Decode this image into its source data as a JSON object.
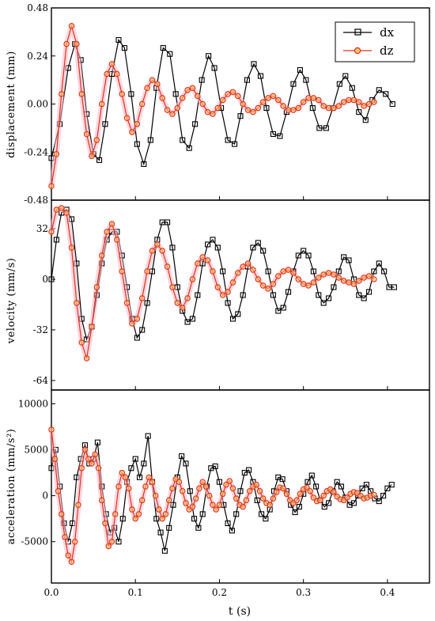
{
  "chart_data": [
    {
      "type": "line",
      "ylabel": "displacement (mm)",
      "ylim": [
        -0.48,
        0.48
      ],
      "yticks": [
        "0.48",
        "0.24",
        "0.00",
        "-0.24",
        "-0.48"
      ],
      "xlim": [
        0.0,
        0.45
      ],
      "legend_position": "top-right",
      "series": [
        {
          "name": "dx",
          "color": "#000000",
          "marker": "square",
          "x": [
            0.0,
            0.01,
            0.02,
            0.028,
            0.035,
            0.042,
            0.05,
            0.057,
            0.064,
            0.072,
            0.08,
            0.087,
            0.095,
            0.102,
            0.11,
            0.118,
            0.125,
            0.133,
            0.141,
            0.148,
            0.156,
            0.164,
            0.171,
            0.179,
            0.187,
            0.194,
            0.202,
            0.21,
            0.218,
            0.225,
            0.233,
            0.241,
            0.249,
            0.256,
            0.264,
            0.272,
            0.28,
            0.288,
            0.296,
            0.303,
            0.311,
            0.319,
            0.327,
            0.335,
            0.343,
            0.35,
            0.358,
            0.366,
            0.374,
            0.382,
            0.39,
            0.398,
            0.406
          ],
          "y": [
            -0.27,
            -0.1,
            0.18,
            0.3,
            0.22,
            -0.05,
            -0.25,
            -0.28,
            -0.1,
            0.15,
            0.32,
            0.28,
            0.05,
            -0.2,
            -0.3,
            -0.18,
            0.08,
            0.28,
            0.25,
            0.05,
            -0.18,
            -0.22,
            -0.1,
            0.12,
            0.24,
            0.18,
            -0.02,
            -0.18,
            -0.2,
            -0.06,
            0.12,
            0.2,
            0.14,
            -0.02,
            -0.15,
            -0.16,
            -0.04,
            0.1,
            0.17,
            0.12,
            -0.02,
            -0.12,
            -0.12,
            -0.02,
            0.1,
            0.14,
            0.08,
            -0.04,
            -0.08,
            0.02,
            0.07,
            0.05,
            0.0
          ]
        },
        {
          "name": "dz",
          "color": "#e0301e",
          "marker": "circle",
          "x": [
            0.0,
            0.006,
            0.012,
            0.018,
            0.024,
            0.03,
            0.036,
            0.042,
            0.048,
            0.054,
            0.06,
            0.066,
            0.072,
            0.078,
            0.084,
            0.09,
            0.096,
            0.102,
            0.108,
            0.114,
            0.12,
            0.126,
            0.132,
            0.138,
            0.144,
            0.15,
            0.156,
            0.162,
            0.168,
            0.174,
            0.18,
            0.186,
            0.192,
            0.198,
            0.204,
            0.21,
            0.216,
            0.222,
            0.228,
            0.234,
            0.24,
            0.246,
            0.252,
            0.258,
            0.264,
            0.27,
            0.276,
            0.282,
            0.288,
            0.294,
            0.3,
            0.306,
            0.312,
            0.318,
            0.324,
            0.33,
            0.336,
            0.342,
            0.348,
            0.354,
            0.36,
            0.366,
            0.372,
            0.378,
            0.384
          ],
          "y": [
            -0.41,
            -0.25,
            0.05,
            0.3,
            0.39,
            0.3,
            0.05,
            -0.15,
            -0.26,
            -0.18,
            0.0,
            0.15,
            0.2,
            0.15,
            0.05,
            -0.07,
            -0.14,
            -0.1,
            0.0,
            0.08,
            0.12,
            0.1,
            0.03,
            -0.03,
            -0.05,
            -0.02,
            0.03,
            0.07,
            0.08,
            0.04,
            0.0,
            -0.04,
            -0.05,
            -0.02,
            0.02,
            0.05,
            0.06,
            0.04,
            0.0,
            -0.03,
            -0.04,
            -0.02,
            0.01,
            0.03,
            0.04,
            0.02,
            -0.01,
            -0.03,
            -0.03,
            -0.02,
            0.01,
            0.03,
            0.03,
            0.02,
            -0.01,
            -0.02,
            -0.02,
            -0.01,
            0.01,
            0.02,
            0.02,
            0.01,
            -0.01,
            0.0,
            0.01
          ]
        }
      ]
    },
    {
      "type": "line",
      "ylabel": "velocity (mm/s)",
      "ylim": [
        -70,
        50
      ],
      "yticks": [
        "32",
        "0",
        "-32",
        "-64"
      ],
      "xlim": [
        0.0,
        0.45
      ],
      "series": [
        {
          "name": "dx",
          "color": "#000000",
          "marker": "square",
          "x": [
            0.0,
            0.006,
            0.012,
            0.018,
            0.024,
            0.03,
            0.036,
            0.042,
            0.048,
            0.054,
            0.06,
            0.066,
            0.072,
            0.078,
            0.084,
            0.09,
            0.096,
            0.102,
            0.108,
            0.114,
            0.12,
            0.126,
            0.132,
            0.138,
            0.144,
            0.15,
            0.156,
            0.162,
            0.168,
            0.174,
            0.18,
            0.186,
            0.192,
            0.198,
            0.204,
            0.21,
            0.216,
            0.222,
            0.228,
            0.234,
            0.24,
            0.246,
            0.252,
            0.258,
            0.264,
            0.27,
            0.276,
            0.282,
            0.288,
            0.294,
            0.3,
            0.306,
            0.312,
            0.318,
            0.324,
            0.33,
            0.336,
            0.342,
            0.348,
            0.354,
            0.36,
            0.366,
            0.372,
            0.378,
            0.384,
            0.39,
            0.396,
            0.402,
            0.408
          ],
          "y": [
            0,
            25,
            42,
            44,
            38,
            10,
            -25,
            -38,
            -30,
            -10,
            10,
            25,
            30,
            30,
            15,
            -5,
            -25,
            -37,
            -32,
            -15,
            5,
            25,
            36,
            36,
            20,
            -5,
            -20,
            -27,
            -25,
            -10,
            10,
            22,
            25,
            20,
            5,
            -15,
            -25,
            -22,
            -10,
            8,
            20,
            23,
            18,
            5,
            -10,
            -20,
            -18,
            -8,
            5,
            15,
            18,
            15,
            5,
            -10,
            -15,
            -12,
            -5,
            5,
            14,
            12,
            0,
            -10,
            -12,
            -8,
            5,
            10,
            5,
            -5,
            -5
          ]
        },
        {
          "name": "dz",
          "color": "#e0301e",
          "marker": "circle",
          "x": [
            0.0,
            0.006,
            0.012,
            0.018,
            0.024,
            0.03,
            0.036,
            0.042,
            0.048,
            0.054,
            0.06,
            0.066,
            0.072,
            0.078,
            0.084,
            0.09,
            0.096,
            0.102,
            0.108,
            0.114,
            0.12,
            0.126,
            0.132,
            0.138,
            0.144,
            0.15,
            0.156,
            0.162,
            0.168,
            0.174,
            0.18,
            0.186,
            0.192,
            0.198,
            0.204,
            0.21,
            0.216,
            0.222,
            0.228,
            0.234,
            0.24,
            0.246,
            0.252,
            0.258,
            0.264,
            0.27,
            0.276,
            0.282,
            0.288,
            0.294,
            0.3,
            0.306,
            0.312,
            0.318,
            0.324,
            0.33,
            0.336,
            0.342,
            0.348,
            0.354,
            0.36,
            0.366,
            0.372,
            0.378,
            0.384
          ],
          "y": [
            30,
            44,
            45,
            42,
            20,
            -15,
            -40,
            -50,
            -30,
            -5,
            15,
            30,
            35,
            25,
            5,
            -15,
            -28,
            -25,
            -12,
            5,
            18,
            22,
            18,
            8,
            -5,
            -15,
            -18,
            -12,
            0,
            10,
            14,
            12,
            5,
            -5,
            -10,
            -8,
            -2,
            4,
            8,
            10,
            6,
            0,
            -4,
            -6,
            -3,
            2,
            5,
            6,
            4,
            0,
            -3,
            -4,
            -2,
            1,
            3,
            4,
            3,
            1,
            -1,
            -2,
            -3,
            -1,
            1,
            2,
            0
          ]
        }
      ]
    },
    {
      "type": "line",
      "ylabel": "acceleration (mm/s²)",
      "ylim": [
        -9500,
        11500
      ],
      "yticks": [
        "10000",
        "5000",
        "0",
        "-5000"
      ],
      "xlim": [
        0.0,
        0.45
      ],
      "xticks": [
        "0.0",
        "0.1",
        "0.2",
        "0.3",
        "0.4"
      ],
      "xlabel": "t (s)",
      "series": [
        {
          "name": "dx",
          "color": "#000000",
          "marker": "square",
          "x": [
            0.0,
            0.005,
            0.01,
            0.015,
            0.02,
            0.025,
            0.03,
            0.035,
            0.04,
            0.045,
            0.05,
            0.055,
            0.06,
            0.065,
            0.07,
            0.075,
            0.08,
            0.085,
            0.09,
            0.095,
            0.1,
            0.105,
            0.11,
            0.115,
            0.12,
            0.125,
            0.13,
            0.135,
            0.14,
            0.145,
            0.15,
            0.155,
            0.16,
            0.165,
            0.17,
            0.175,
            0.18,
            0.185,
            0.19,
            0.195,
            0.2,
            0.205,
            0.21,
            0.215,
            0.22,
            0.225,
            0.23,
            0.235,
            0.24,
            0.245,
            0.25,
            0.255,
            0.26,
            0.265,
            0.27,
            0.275,
            0.28,
            0.285,
            0.29,
            0.295,
            0.3,
            0.305,
            0.31,
            0.315,
            0.32,
            0.325,
            0.33,
            0.335,
            0.34,
            0.345,
            0.35,
            0.355,
            0.36,
            0.365,
            0.37,
            0.375,
            0.38,
            0.385,
            0.39,
            0.395,
            0.4,
            0.405
          ],
          "y": [
            3000,
            5000,
            1000,
            -3000,
            -5000,
            -3000,
            2000,
            4000,
            5500,
            3500,
            4000,
            5800,
            1000,
            -2000,
            -4000,
            -3500,
            -5000,
            -2500,
            1500,
            3000,
            4000,
            2000,
            3500,
            6500,
            1500,
            -2500,
            -4000,
            -6000,
            -3500,
            -1000,
            2000,
            4300,
            3500,
            500,
            -2500,
            -3500,
            -2000,
            1000,
            3000,
            3200,
            1500,
            -1000,
            -3000,
            -3800,
            -2000,
            500,
            2500,
            2800,
            1500,
            -500,
            -2000,
            -2500,
            -1500,
            500,
            2000,
            1800,
            500,
            -1000,
            -1800,
            -1200,
            200,
            1500,
            2200,
            1000,
            -500,
            -1200,
            -800,
            500,
            1500,
            1000,
            -200,
            -1000,
            -800,
            0,
            800,
            1200,
            500,
            -300,
            -600,
            0,
            800,
            1200
          ]
        },
        {
          "name": "dz",
          "color": "#e0301e",
          "marker": "circle",
          "x": [
            0.0,
            0.004,
            0.008,
            0.012,
            0.016,
            0.02,
            0.024,
            0.028,
            0.032,
            0.036,
            0.04,
            0.044,
            0.048,
            0.052,
            0.056,
            0.06,
            0.064,
            0.068,
            0.072,
            0.076,
            0.08,
            0.084,
            0.088,
            0.092,
            0.096,
            0.1,
            0.104,
            0.108,
            0.112,
            0.116,
            0.12,
            0.124,
            0.128,
            0.132,
            0.136,
            0.14,
            0.144,
            0.148,
            0.152,
            0.156,
            0.16,
            0.164,
            0.168,
            0.172,
            0.176,
            0.18,
            0.184,
            0.188,
            0.192,
            0.196,
            0.2,
            0.204,
            0.208,
            0.212,
            0.216,
            0.22,
            0.224,
            0.228,
            0.232,
            0.236,
            0.24,
            0.244,
            0.248,
            0.252,
            0.256,
            0.26,
            0.264,
            0.268,
            0.272,
            0.276,
            0.28,
            0.284,
            0.288,
            0.292,
            0.296,
            0.3,
            0.304,
            0.308,
            0.312,
            0.316,
            0.32,
            0.324,
            0.328,
            0.332,
            0.336,
            0.34,
            0.344,
            0.348,
            0.352,
            0.356,
            0.36,
            0.364,
            0.368,
            0.372,
            0.376,
            0.38,
            0.384
          ],
          "y": [
            7200,
            4000,
            500,
            -2000,
            -4500,
            -6500,
            -7200,
            -5000,
            -1000,
            3000,
            5000,
            4000,
            3500,
            4500,
            3000,
            -500,
            -3000,
            -5500,
            -5000,
            -2000,
            1000,
            2500,
            2000,
            800,
            -1500,
            -2500,
            -2000,
            -500,
            1000,
            2000,
            1500,
            0,
            -1500,
            -2500,
            -2000,
            -500,
            800,
            1800,
            1500,
            500,
            -800,
            -1500,
            -1200,
            -300,
            800,
            1500,
            1000,
            0,
            -1000,
            -1500,
            -1000,
            200,
            1200,
            1600,
            800,
            -300,
            -1000,
            -1200,
            -500,
            500,
            1000,
            1200,
            500,
            -300,
            -800,
            -1000,
            -300,
            400,
            900,
            800,
            200,
            -500,
            -800,
            -500,
            200,
            700,
            900,
            500,
            -200,
            -600,
            -500,
            0,
            500,
            700,
            400,
            -100,
            -400,
            -500,
            -200,
            200,
            400,
            300,
            0,
            -300,
            -200,
            0,
            100
          ]
        }
      ]
    }
  ]
}
